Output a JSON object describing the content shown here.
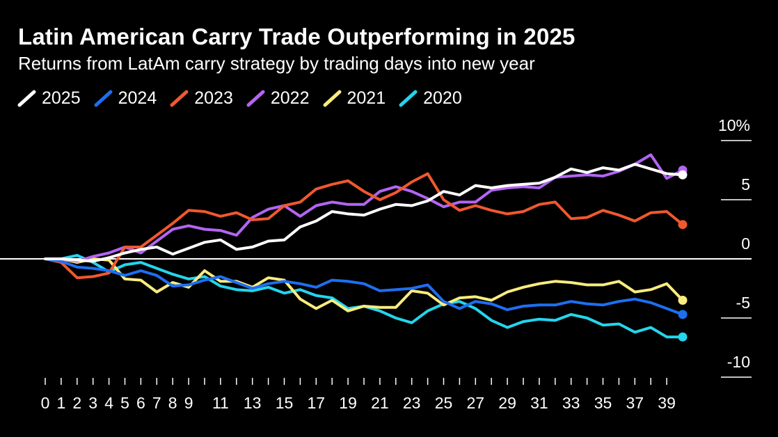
{
  "title": "Latin American Carry Trade Outperforming in 2025",
  "subtitle": "Returns from LatAm carry strategy by trading days into new year",
  "chart_data": {
    "type": "line",
    "title": "Latin American Carry Trade Outperforming in 2025",
    "subtitle": "Returns from LatAm carry strategy by trading days into new year",
    "xlabel": "",
    "ylabel": "",
    "xlim": [
      0,
      40
    ],
    "ylim": [
      -10,
      10
    ],
    "x_ticks": [
      0,
      1,
      2,
      3,
      4,
      5,
      6,
      7,
      8,
      9,
      11,
      13,
      15,
      17,
      19,
      21,
      23,
      25,
      27,
      29,
      31,
      33,
      35,
      37,
      39
    ],
    "y_ticks": [
      {
        "value": 10,
        "label": "10%"
      },
      {
        "value": 5,
        "label": "5"
      },
      {
        "value": 0,
        "label": "0"
      },
      {
        "value": -5,
        "label": "-5"
      },
      {
        "value": -10,
        "label": "-10"
      }
    ],
    "legend_position": "top-left",
    "series": [
      {
        "name": "2025",
        "color": "#ffffff",
        "values": [
          0,
          0,
          -0.1,
          -0.2,
          0.1,
          0.5,
          0.8,
          1.0,
          0.4,
          0.9,
          1.4,
          1.6,
          0.8,
          1.0,
          1.5,
          1.6,
          2.7,
          3.2,
          4.0,
          3.8,
          3.7,
          4.2,
          4.6,
          4.5,
          4.9,
          5.7,
          5.4,
          6.2,
          6.0,
          6.2,
          6.3,
          6.4,
          6.9,
          7.6,
          7.3,
          7.7,
          7.5,
          8.0,
          7.6,
          7.2,
          7.1
        ]
      },
      {
        "name": "2024",
        "color": "#1d6ff2",
        "values": [
          0,
          -0.2,
          -0.7,
          -0.8,
          -1.0,
          -1.4,
          -1.0,
          -1.4,
          -2.3,
          -2.2,
          -1.8,
          -1.5,
          -2.0,
          -2.5,
          -2.1,
          -1.9,
          -2.1,
          -2.4,
          -1.8,
          -1.9,
          -2.1,
          -2.7,
          -2.6,
          -2.5,
          -2.2,
          -3.6,
          -4.2,
          -3.6,
          -3.8,
          -4.3,
          -4.0,
          -3.9,
          -3.9,
          -3.6,
          -3.8,
          -3.9,
          -3.6,
          -3.4,
          -3.7,
          -4.2,
          -4.7
        ]
      },
      {
        "name": "2023",
        "color": "#f0582e",
        "values": [
          0,
          -0.3,
          -1.6,
          -1.5,
          -1.2,
          1.0,
          1.0,
          2.0,
          3.0,
          4.1,
          4.0,
          3.6,
          3.9,
          3.3,
          3.4,
          4.5,
          4.8,
          5.9,
          6.3,
          6.6,
          5.7,
          5.0,
          5.6,
          6.5,
          7.2,
          5.0,
          4.1,
          4.5,
          4.1,
          3.8,
          4.0,
          4.6,
          4.8,
          3.4,
          3.5,
          4.1,
          3.7,
          3.2,
          3.9,
          4.0,
          2.9
        ]
      },
      {
        "name": "2022",
        "color": "#b365f2",
        "values": [
          0,
          0,
          -0.2,
          0.2,
          0.5,
          1.0,
          0.5,
          1.5,
          2.5,
          2.8,
          2.5,
          2.4,
          2.0,
          3.5,
          4.2,
          4.5,
          3.6,
          4.5,
          4.8,
          4.6,
          4.6,
          5.7,
          6.1,
          5.7,
          5.1,
          4.4,
          4.8,
          4.8,
          5.8,
          6.0,
          6.1,
          6.0,
          6.9,
          7.0,
          7.1,
          7.0,
          7.4,
          8.0,
          8.8,
          6.8,
          7.5
        ]
      },
      {
        "name": "2021",
        "color": "#faec7e",
        "values": [
          0,
          0,
          -0.3,
          0,
          -0.1,
          -1.7,
          -1.8,
          -2.8,
          -2.0,
          -2.4,
          -1.0,
          -1.9,
          -1.9,
          -2.4,
          -1.6,
          -1.8,
          -3.4,
          -4.2,
          -3.5,
          -4.4,
          -4.0,
          -4.1,
          -4.1,
          -2.7,
          -2.9,
          -3.9,
          -3.3,
          -3.2,
          -3.5,
          -2.8,
          -2.4,
          -2.1,
          -1.9,
          -2.0,
          -2.2,
          -2.2,
          -1.9,
          -2.8,
          -2.6,
          -2.1,
          -3.5
        ]
      },
      {
        "name": "2020",
        "color": "#24d5ec",
        "values": [
          0,
          0,
          0.3,
          -0.3,
          -1.1,
          -0.5,
          -0.3,
          -0.8,
          -1.3,
          -1.7,
          -1.5,
          -2.3,
          -2.6,
          -2.7,
          -2.4,
          -2.9,
          -2.6,
          -3.1,
          -3.3,
          -4.2,
          -4.0,
          -4.4,
          -5.0,
          -5.4,
          -4.4,
          -3.8,
          -3.6,
          -4.2,
          -5.2,
          -5.8,
          -5.3,
          -5.1,
          -5.2,
          -4.7,
          -5.0,
          -5.6,
          -5.5,
          -6.2,
          -5.8,
          -6.6,
          -6.6
        ]
      }
    ]
  }
}
